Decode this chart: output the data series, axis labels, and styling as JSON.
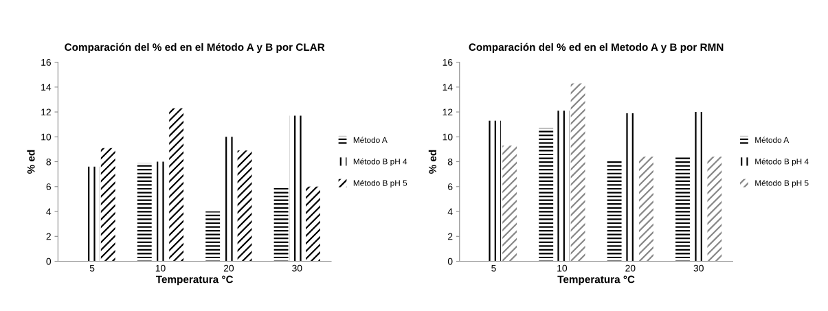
{
  "chart_data": [
    {
      "type": "bar",
      "title": "Comparación del % ed en el Método A y B por CLAR",
      "xlabel": "Temperatura °C",
      "ylabel": "% ed",
      "categories": [
        "5",
        "10",
        "20",
        "30"
      ],
      "series": [
        {
          "name": "Método A",
          "color": "#000000",
          "values": [
            0,
            7.9,
            4.0,
            5.9
          ]
        },
        {
          "name": "Método B pH 4",
          "color": "#000000",
          "values": [
            7.6,
            8.0,
            10.0,
            11.7
          ]
        },
        {
          "name": "Método B pH 5",
          "color": "#000000",
          "values": [
            9.1,
            12.3,
            8.9,
            6.0
          ]
        }
      ],
      "ylim": [
        0,
        16
      ],
      "yticks": [
        0,
        2,
        4,
        6,
        8,
        10,
        12,
        14,
        16
      ],
      "grid": false,
      "legend": "right"
    },
    {
      "type": "bar",
      "title": "Comparación del % ed en el Metodo A y B por RMN",
      "xlabel": "Temperatura °C",
      "ylabel": "% ed",
      "categories": [
        "5",
        "10",
        "20",
        "30"
      ],
      "series": [
        {
          "name": "Método A",
          "color": "#000000",
          "values": [
            0,
            10.7,
            8.1,
            8.4
          ]
        },
        {
          "name": "Método B pH 4",
          "color": "#000000",
          "values": [
            11.3,
            12.1,
            11.9,
            12.0
          ]
        },
        {
          "name": "Método B pH 5",
          "color": "#888888",
          "values": [
            9.3,
            14.3,
            8.4,
            8.4
          ]
        }
      ],
      "ylim": [
        0,
        16
      ],
      "yticks": [
        0,
        2,
        4,
        6,
        8,
        10,
        12,
        14,
        16
      ],
      "grid": false,
      "legend": "right"
    }
  ]
}
